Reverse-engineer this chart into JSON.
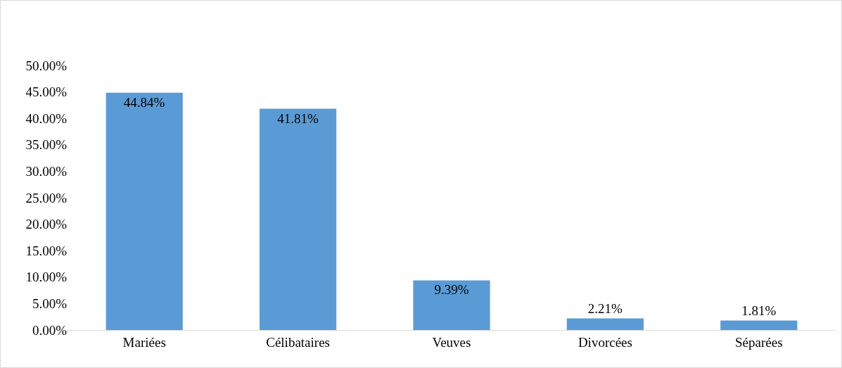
{
  "chart_data": {
    "type": "bar",
    "categories": [
      "Mariées",
      "Célibataires",
      "Veuves",
      "Divorcées",
      "Séparées"
    ],
    "values": [
      44.84,
      41.81,
      9.39,
      2.21,
      1.81
    ],
    "value_labels": [
      "44.84%",
      "41.81%",
      "9.39%",
      "2.21%",
      "1.81%"
    ],
    "color": "#5b9bd5",
    "ylim": [
      0,
      50
    ],
    "yticks": [
      {
        "value": 0,
        "label": "0.00%"
      },
      {
        "value": 5,
        "label": "5.00%"
      },
      {
        "value": 10,
        "label": "10.00%"
      },
      {
        "value": 15,
        "label": "15.00%"
      },
      {
        "value": 20,
        "label": "20.00%"
      },
      {
        "value": 25,
        "label": "25.00%"
      },
      {
        "value": 30,
        "label": "30.00%"
      },
      {
        "value": 35,
        "label": "35.00%"
      },
      {
        "value": 40,
        "label": "40.00%"
      },
      {
        "value": 45,
        "label": "45.00%"
      },
      {
        "value": 50,
        "label": "50.00%"
      }
    ],
    "grid": false
  }
}
